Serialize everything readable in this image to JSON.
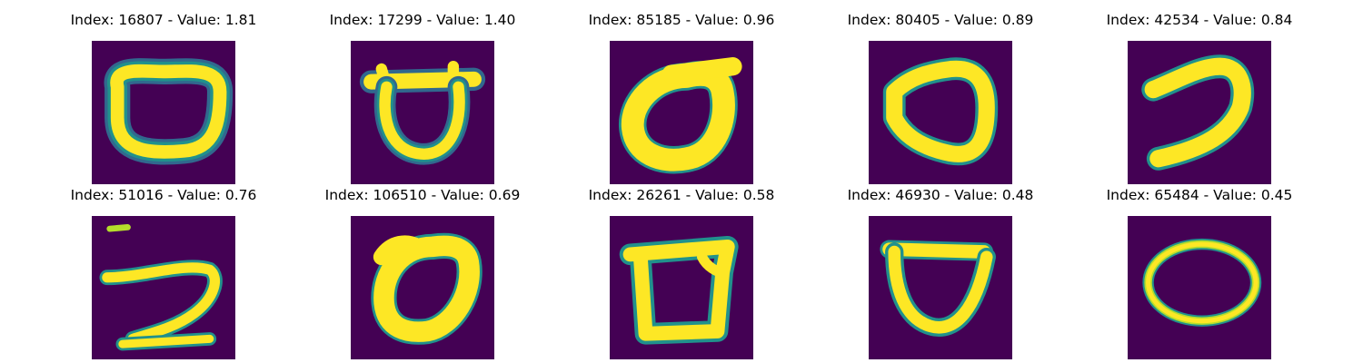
{
  "colors": {
    "background": "#440154",
    "stroke_core": "#fde725",
    "stroke_mid": "#b5de2b",
    "stroke_edge": "#21918c",
    "stroke_halo": "#31688e"
  },
  "panels": [
    {
      "title": "Index: 16807 - Value: 1.81",
      "shape": "rounded-loop-zero"
    },
    {
      "title": "Index: 17299 - Value: 1.40",
      "shape": "cup-with-bar-zero"
    },
    {
      "title": "Index: 85185 - Value: 0.96",
      "shape": "slanted-thick-zero"
    },
    {
      "title": "Index: 80405 - Value: 0.89",
      "shape": "irregular-loop-zero"
    },
    {
      "title": "Index: 42534 - Value: 0.84",
      "shape": "open-curve-stroke"
    },
    {
      "title": "Index: 51016 - Value: 0.76",
      "shape": "hook-stroke"
    },
    {
      "title": "Index: 106510 - Value: 0.69",
      "shape": "tilted-thick-zero"
    },
    {
      "title": "Index: 26261 - Value: 0.58",
      "shape": "boxy-zero"
    },
    {
      "title": "Index: 46930 - Value: 0.48",
      "shape": "u-cup-zero"
    },
    {
      "title": "Index: 65484 - Value: 0.45",
      "shape": "thin-oval-zero"
    }
  ]
}
